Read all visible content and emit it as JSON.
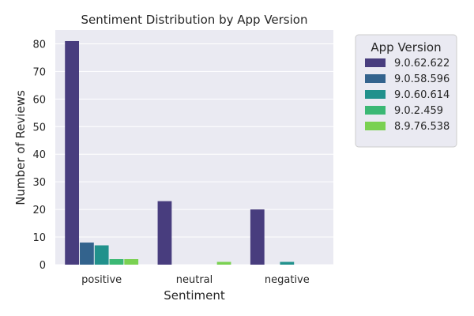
{
  "chart_data": {
    "type": "bar",
    "title": "Sentiment Distribution by App Version",
    "xlabel": "Sentiment",
    "ylabel": "Number of Reviews",
    "categories": [
      "positive",
      "neutral",
      "negative"
    ],
    "ylim": [
      0,
      85
    ],
    "yticks": [
      0,
      10,
      20,
      30,
      40,
      50,
      60,
      70,
      80
    ],
    "grid": true,
    "legend_position": "outside-right",
    "legend_title": "App Version",
    "series": [
      {
        "name": "9.0.62.622",
        "color": "#483d7e",
        "values": [
          81,
          23,
          20
        ]
      },
      {
        "name": "9.0.58.596",
        "color": "#33638d",
        "values": [
          8,
          0,
          0
        ]
      },
      {
        "name": "9.0.60.614",
        "color": "#21918c",
        "values": [
          7,
          0,
          1
        ]
      },
      {
        "name": "9.0.2.459",
        "color": "#3bb874",
        "values": [
          2,
          0,
          0
        ]
      },
      {
        "name": "8.9.76.538",
        "color": "#7ad151",
        "values": [
          2,
          1,
          0
        ]
      }
    ],
    "colors": {
      "plot_background": "#eaeaf2",
      "grid": "#ffffff",
      "text": "#262626"
    }
  }
}
